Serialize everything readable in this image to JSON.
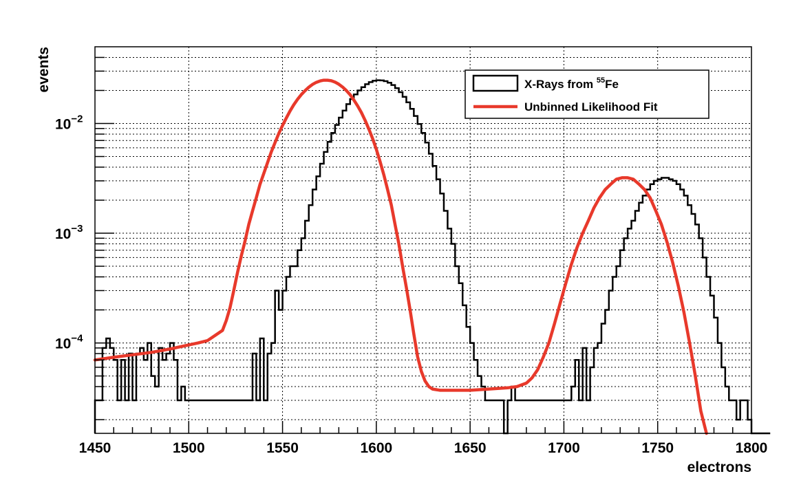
{
  "chart_data": {
    "type": "line",
    "title": "",
    "xlabel": "electrons",
    "ylabel": "events",
    "xlim": [
      1450,
      1800
    ],
    "ylim": [
      1.5e-05,
      0.05
    ],
    "yscale": "log",
    "grid": true,
    "legend_position": "top-right",
    "x_ticks": [
      {
        "value": 1450,
        "label": "1450"
      },
      {
        "value": 1500,
        "label": "1500"
      },
      {
        "value": 1550,
        "label": "1550"
      },
      {
        "value": 1600,
        "label": "1600"
      },
      {
        "value": 1650,
        "label": "1650"
      },
      {
        "value": 1700,
        "label": "1700"
      },
      {
        "value": 1750,
        "label": "1750"
      },
      {
        "value": 1800,
        "label": "1800"
      }
    ],
    "y_ticks": [
      {
        "value": 0.0001,
        "base": "10",
        "exponent": "−4"
      },
      {
        "value": 0.001,
        "base": "10",
        "exponent": "−3"
      },
      {
        "value": 0.01,
        "base": "10",
        "exponent": "−2"
      }
    ],
    "legend": {
      "histogram_label": "X-Rays from ",
      "histogram_isotope_mass": "55",
      "histogram_isotope_symbol": "Fe",
      "fit_label": "Unbinned Likelihood Fit"
    },
    "colors": {
      "histogram": "#000000",
      "fit": "#e8392b"
    },
    "series": [
      {
        "name": "X-Rays from 55Fe",
        "kind": "histogram",
        "bin_width": 2,
        "bin_start": 1450,
        "values": [
          3e-05,
          3e-05,
          9e-05,
          0.00011,
          9e-05,
          7e-05,
          3e-05,
          7e-05,
          3e-05,
          8e-05,
          3e-05,
          8e-05,
          9e-05,
          7e-05,
          0.0001,
          5e-05,
          4e-05,
          9e-05,
          7e-05,
          8e-05,
          0.0001,
          7e-05,
          3e-05,
          4e-05,
          3e-05,
          3e-05,
          3e-05,
          3e-05,
          3e-05,
          3e-05,
          3e-05,
          3e-05,
          3e-05,
          3e-05,
          3e-05,
          3e-05,
          3e-05,
          3e-05,
          3e-05,
          3e-05,
          3e-05,
          3e-05,
          8e-05,
          3e-05,
          0.00011,
          3e-05,
          8e-05,
          0.0001,
          0.0003,
          0.0002,
          0.0003,
          0.0004,
          0.0005,
          0.0005,
          0.0007,
          0.0009,
          0.0013,
          0.0018,
          0.0025,
          0.0033,
          0.0043,
          0.0055,
          0.0068,
          0.0082,
          0.0097,
          0.0113,
          0.0131,
          0.015,
          0.0167,
          0.0184,
          0.02,
          0.0214,
          0.0228,
          0.0238,
          0.0245,
          0.0248,
          0.0247,
          0.0243,
          0.0235,
          0.0224,
          0.021,
          0.0193,
          0.0175,
          0.0156,
          0.0136,
          0.0117,
          0.0099,
          0.0082,
          0.0067,
          0.0053,
          0.0041,
          0.0031,
          0.0023,
          0.0016,
          0.0011,
          0.0008,
          0.0005,
          0.00035,
          0.00022,
          0.00014,
          0.0001,
          7e-05,
          5e-05,
          4e-05,
          3e-05,
          3e-05,
          3e-05,
          3e-05,
          3e-05,
          1.5e-05,
          3e-05,
          4e-05,
          3e-05,
          3e-05,
          3e-05,
          3e-05,
          3e-05,
          3e-05,
          3e-05,
          3e-05,
          3e-05,
          3e-05,
          3e-05,
          3e-05,
          3e-05,
          3e-05,
          3e-05,
          4e-05,
          7e-05,
          3e-05,
          9e-05,
          3e-05,
          6e-05,
          9e-05,
          0.0001,
          0.00015,
          0.0002,
          0.0003,
          0.0004,
          0.0005,
          0.0007,
          0.0009,
          0.0011,
          0.0013,
          0.0016,
          0.0019,
          0.0022,
          0.0025,
          0.0028,
          0.003,
          0.0031,
          0.0032,
          0.0032,
          0.0031,
          0.003,
          0.0028,
          0.0025,
          0.0022,
          0.0018,
          0.0015,
          0.0012,
          0.0009,
          0.0006,
          0.0004,
          0.00027,
          0.00017,
          0.0001,
          6e-05,
          4e-05,
          3e-05,
          3e-05,
          2e-05,
          3e-05,
          3e-05,
          2e-05,
          1.5e-05,
          1.5e-05,
          1.5e-05,
          1.5e-05,
          1.5e-05
        ]
      },
      {
        "name": "Unbinned Likelihood Fit",
        "kind": "line",
        "x": [
          1450,
          1460,
          1470,
          1480,
          1490,
          1500,
          1505,
          1510,
          1515,
          1518,
          1520,
          1522,
          1524,
          1526,
          1528,
          1530,
          1532,
          1534,
          1536,
          1538,
          1540,
          1542,
          1544,
          1546,
          1548,
          1550,
          1552,
          1554,
          1556,
          1558,
          1560,
          1562,
          1564,
          1566,
          1568,
          1570,
          1572,
          1574,
          1576,
          1578,
          1580,
          1582,
          1584,
          1586,
          1588,
          1590,
          1592,
          1594,
          1596,
          1598,
          1600,
          1602,
          1604,
          1606,
          1608,
          1610,
          1612,
          1614,
          1616,
          1618,
          1620,
          1622,
          1624,
          1626,
          1628,
          1630,
          1634,
          1640,
          1650,
          1660,
          1670,
          1675,
          1680,
          1683,
          1686,
          1689,
          1692,
          1695,
          1698,
          1701,
          1704,
          1707,
          1710,
          1713,
          1716,
          1719,
          1722,
          1725,
          1728,
          1731,
          1734,
          1737,
          1740,
          1743,
          1746,
          1749,
          1752,
          1755,
          1758,
          1761,
          1764,
          1767,
          1770,
          1773,
          1776
        ],
        "values": [
          7e-05,
          7.4e-05,
          7.8e-05,
          8.2e-05,
          8.8e-05,
          9.6e-05,
          0.0001,
          0.000105,
          0.00012,
          0.00013,
          0.00016,
          0.00021,
          0.0003,
          0.00044,
          0.00062,
          0.00085,
          0.0012,
          0.0016,
          0.0021,
          0.0028,
          0.0035,
          0.0044,
          0.0055,
          0.0067,
          0.0081,
          0.0096,
          0.0112,
          0.013,
          0.0148,
          0.0166,
          0.0183,
          0.0199,
          0.0214,
          0.0227,
          0.0237,
          0.0244,
          0.0248,
          0.0248,
          0.0245,
          0.0238,
          0.0228,
          0.0215,
          0.02,
          0.0183,
          0.0164,
          0.0145,
          0.0126,
          0.0107,
          0.0089,
          0.0073,
          0.0058,
          0.0045,
          0.0034,
          0.0025,
          0.0018,
          0.0012,
          0.0008,
          0.0005,
          0.00032,
          0.0002,
          0.00012,
          7.5e-05,
          5.5e-05,
          4.5e-05,
          4e-05,
          3.8e-05,
          3.7e-05,
          3.7e-05,
          3.7e-05,
          3.8e-05,
          3.9e-05,
          4e-05,
          4.3e-05,
          4.8e-05,
          5.7e-05,
          7.4e-05,
          0.0001,
          0.00015,
          0.00023,
          0.00035,
          0.00052,
          0.00074,
          0.001,
          0.0013,
          0.0017,
          0.0021,
          0.0025,
          0.0028,
          0.0031,
          0.0032,
          0.0032,
          0.0031,
          0.0028,
          0.0025,
          0.0021,
          0.0016,
          0.0012,
          0.00083,
          0.00054,
          0.00033,
          0.00019,
          0.0001,
          5.1e-05,
          2.4e-05,
          1.5e-05
        ]
      }
    ]
  }
}
